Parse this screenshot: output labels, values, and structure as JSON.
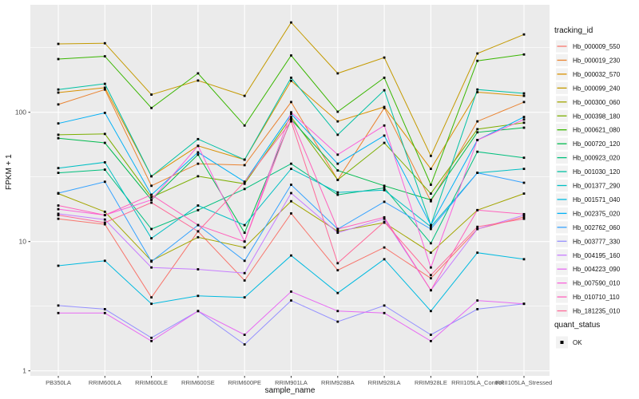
{
  "chart_data": {
    "type": "line",
    "title": "",
    "xlabel": "sample_name",
    "ylabel": "FPKM + 1",
    "yscale": "log",
    "ylim": [
      1,
      660
    ],
    "ytick_labels": [
      "1",
      "10",
      "100"
    ],
    "yticks": [
      1,
      10,
      100
    ],
    "minor_yticks": [
      3.162,
      31.62,
      316.2
    ],
    "grid": true,
    "panel_bg": "#EBEBEB",
    "grid_color": "#FFFFFF",
    "axis_text_color": "#4D4D4D",
    "marker": "black-square",
    "legend_position": "right",
    "legend_title": "tracking_id",
    "legend2_title": "quant_status",
    "legend2_items": [
      {
        "label": "OK",
        "marker": "black-square"
      }
    ],
    "categories": [
      "PB350LA",
      "RRIM600LA",
      "RRIM600LE",
      "RRIM600SE",
      "RRIM600PE",
      "RRIM901LA",
      "RRIM928BA",
      "RRIM928LA",
      "RRIM928LE",
      "RRII105LA_Control",
      "RRII105LA_Stressed"
    ],
    "series": [
      {
        "name": "Hb_000009_550",
        "color": "#F8766D",
        "values": [
          15,
          13.6,
          3.7,
          12,
          5.0,
          16.5,
          6.0,
          9.0,
          5.2,
          12.5,
          15.5
        ]
      },
      {
        "name": "Hb_000019_230",
        "color": "#EA8331",
        "values": [
          115,
          150,
          27,
          40,
          39,
          120,
          30,
          108,
          20.5,
          85,
          120
        ]
      },
      {
        "name": "Hb_000032_570",
        "color": "#D89000",
        "values": [
          142,
          155,
          32,
          55,
          43,
          175,
          85,
          110,
          36.5,
          143,
          134
        ]
      },
      {
        "name": "Hb_000099_240",
        "color": "#C49A00",
        "values": [
          338,
          342,
          137,
          176,
          134,
          495,
          200,
          265,
          46,
          285,
          400
        ]
      },
      {
        "name": "Hb_000300_060",
        "color": "#A3A500",
        "values": [
          23.5,
          17,
          7.1,
          10.8,
          9.0,
          20.5,
          12,
          14,
          8.2,
          17.5,
          23.5
        ]
      },
      {
        "name": "Hb_000398_180",
        "color": "#7CAE00",
        "values": [
          67,
          68,
          22,
          32,
          28,
          92,
          30,
          58,
          23.5,
          74,
          83
        ]
      },
      {
        "name": "Hb_000621_080",
        "color": "#39B600",
        "values": [
          258,
          271,
          108,
          200,
          79,
          275,
          101,
          185,
          27.5,
          250,
          280
        ]
      },
      {
        "name": "Hb_000720_120",
        "color": "#00BB4E",
        "values": [
          63,
          58,
          21,
          47,
          11.7,
          88,
          35.5,
          27,
          21,
          70,
          76
        ]
      },
      {
        "name": "Hb_000923_020",
        "color": "#00BF7D",
        "values": [
          34,
          36,
          12.5,
          17.5,
          25.5,
          40,
          23,
          26,
          9.7,
          49.5,
          44.5
        ]
      },
      {
        "name": "Hb_001030_120",
        "color": "#00C1A3",
        "values": [
          150,
          166,
          32,
          62,
          43,
          185,
          67,
          148,
          13.4,
          150,
          140
        ]
      },
      {
        "name": "Hb_001377_290",
        "color": "#00BFC4",
        "values": [
          37,
          41,
          10.6,
          19,
          13.4,
          36.5,
          24,
          25,
          13,
          34,
          36.5
        ]
      },
      {
        "name": "Hb_001571_040",
        "color": "#00BAE0",
        "values": [
          6.5,
          7.1,
          3.3,
          3.8,
          3.7,
          7.8,
          4.0,
          7.3,
          2.9,
          8.2,
          7.3
        ]
      },
      {
        "name": "Hb_002375_020",
        "color": "#00B0F6",
        "values": [
          82,
          99,
          23,
          49,
          29,
          97,
          40,
          66,
          13.4,
          61,
          92
        ]
      },
      {
        "name": "Hb_002762_060",
        "color": "#35A2FF",
        "values": [
          23.7,
          29,
          7.0,
          13.4,
          7.1,
          27.5,
          12.5,
          20.3,
          12.5,
          34,
          28.5
        ]
      },
      {
        "name": "Hb_003777_330",
        "color": "#9590FF",
        "values": [
          3.2,
          3.0,
          1.8,
          2.9,
          1.6,
          3.5,
          2.4,
          3.2,
          1.9,
          3.0,
          3.3
        ]
      },
      {
        "name": "Hb_004195_160",
        "color": "#C77CFF",
        "values": [
          16.4,
          14.8,
          6.3,
          6.1,
          5.7,
          23.7,
          11.7,
          15,
          4.2,
          12.5,
          16
        ]
      },
      {
        "name": "Hb_004223_090",
        "color": "#E76BF3",
        "values": [
          2.8,
          2.8,
          1.7,
          2.9,
          1.9,
          4.1,
          2.9,
          2.8,
          1.7,
          3.5,
          3.3
        ]
      },
      {
        "name": "Hb_007590_010",
        "color": "#FA62DB",
        "values": [
          17.8,
          16,
          21,
          55,
          10,
          100,
          47,
          79,
          6.3,
          61,
          88
        ]
      },
      {
        "name": "Hb_010710_110",
        "color": "#FF62BC",
        "values": [
          19,
          16,
          23,
          13.4,
          10,
          90,
          12.5,
          15.4,
          4.2,
          17.5,
          16.3
        ]
      },
      {
        "name": "Hb_181235_010",
        "color": "#FF6A98",
        "values": [
          16,
          14,
          20,
          12,
          29,
          85,
          6.8,
          14.2,
          5.5,
          13,
          15
        ]
      }
    ]
  }
}
